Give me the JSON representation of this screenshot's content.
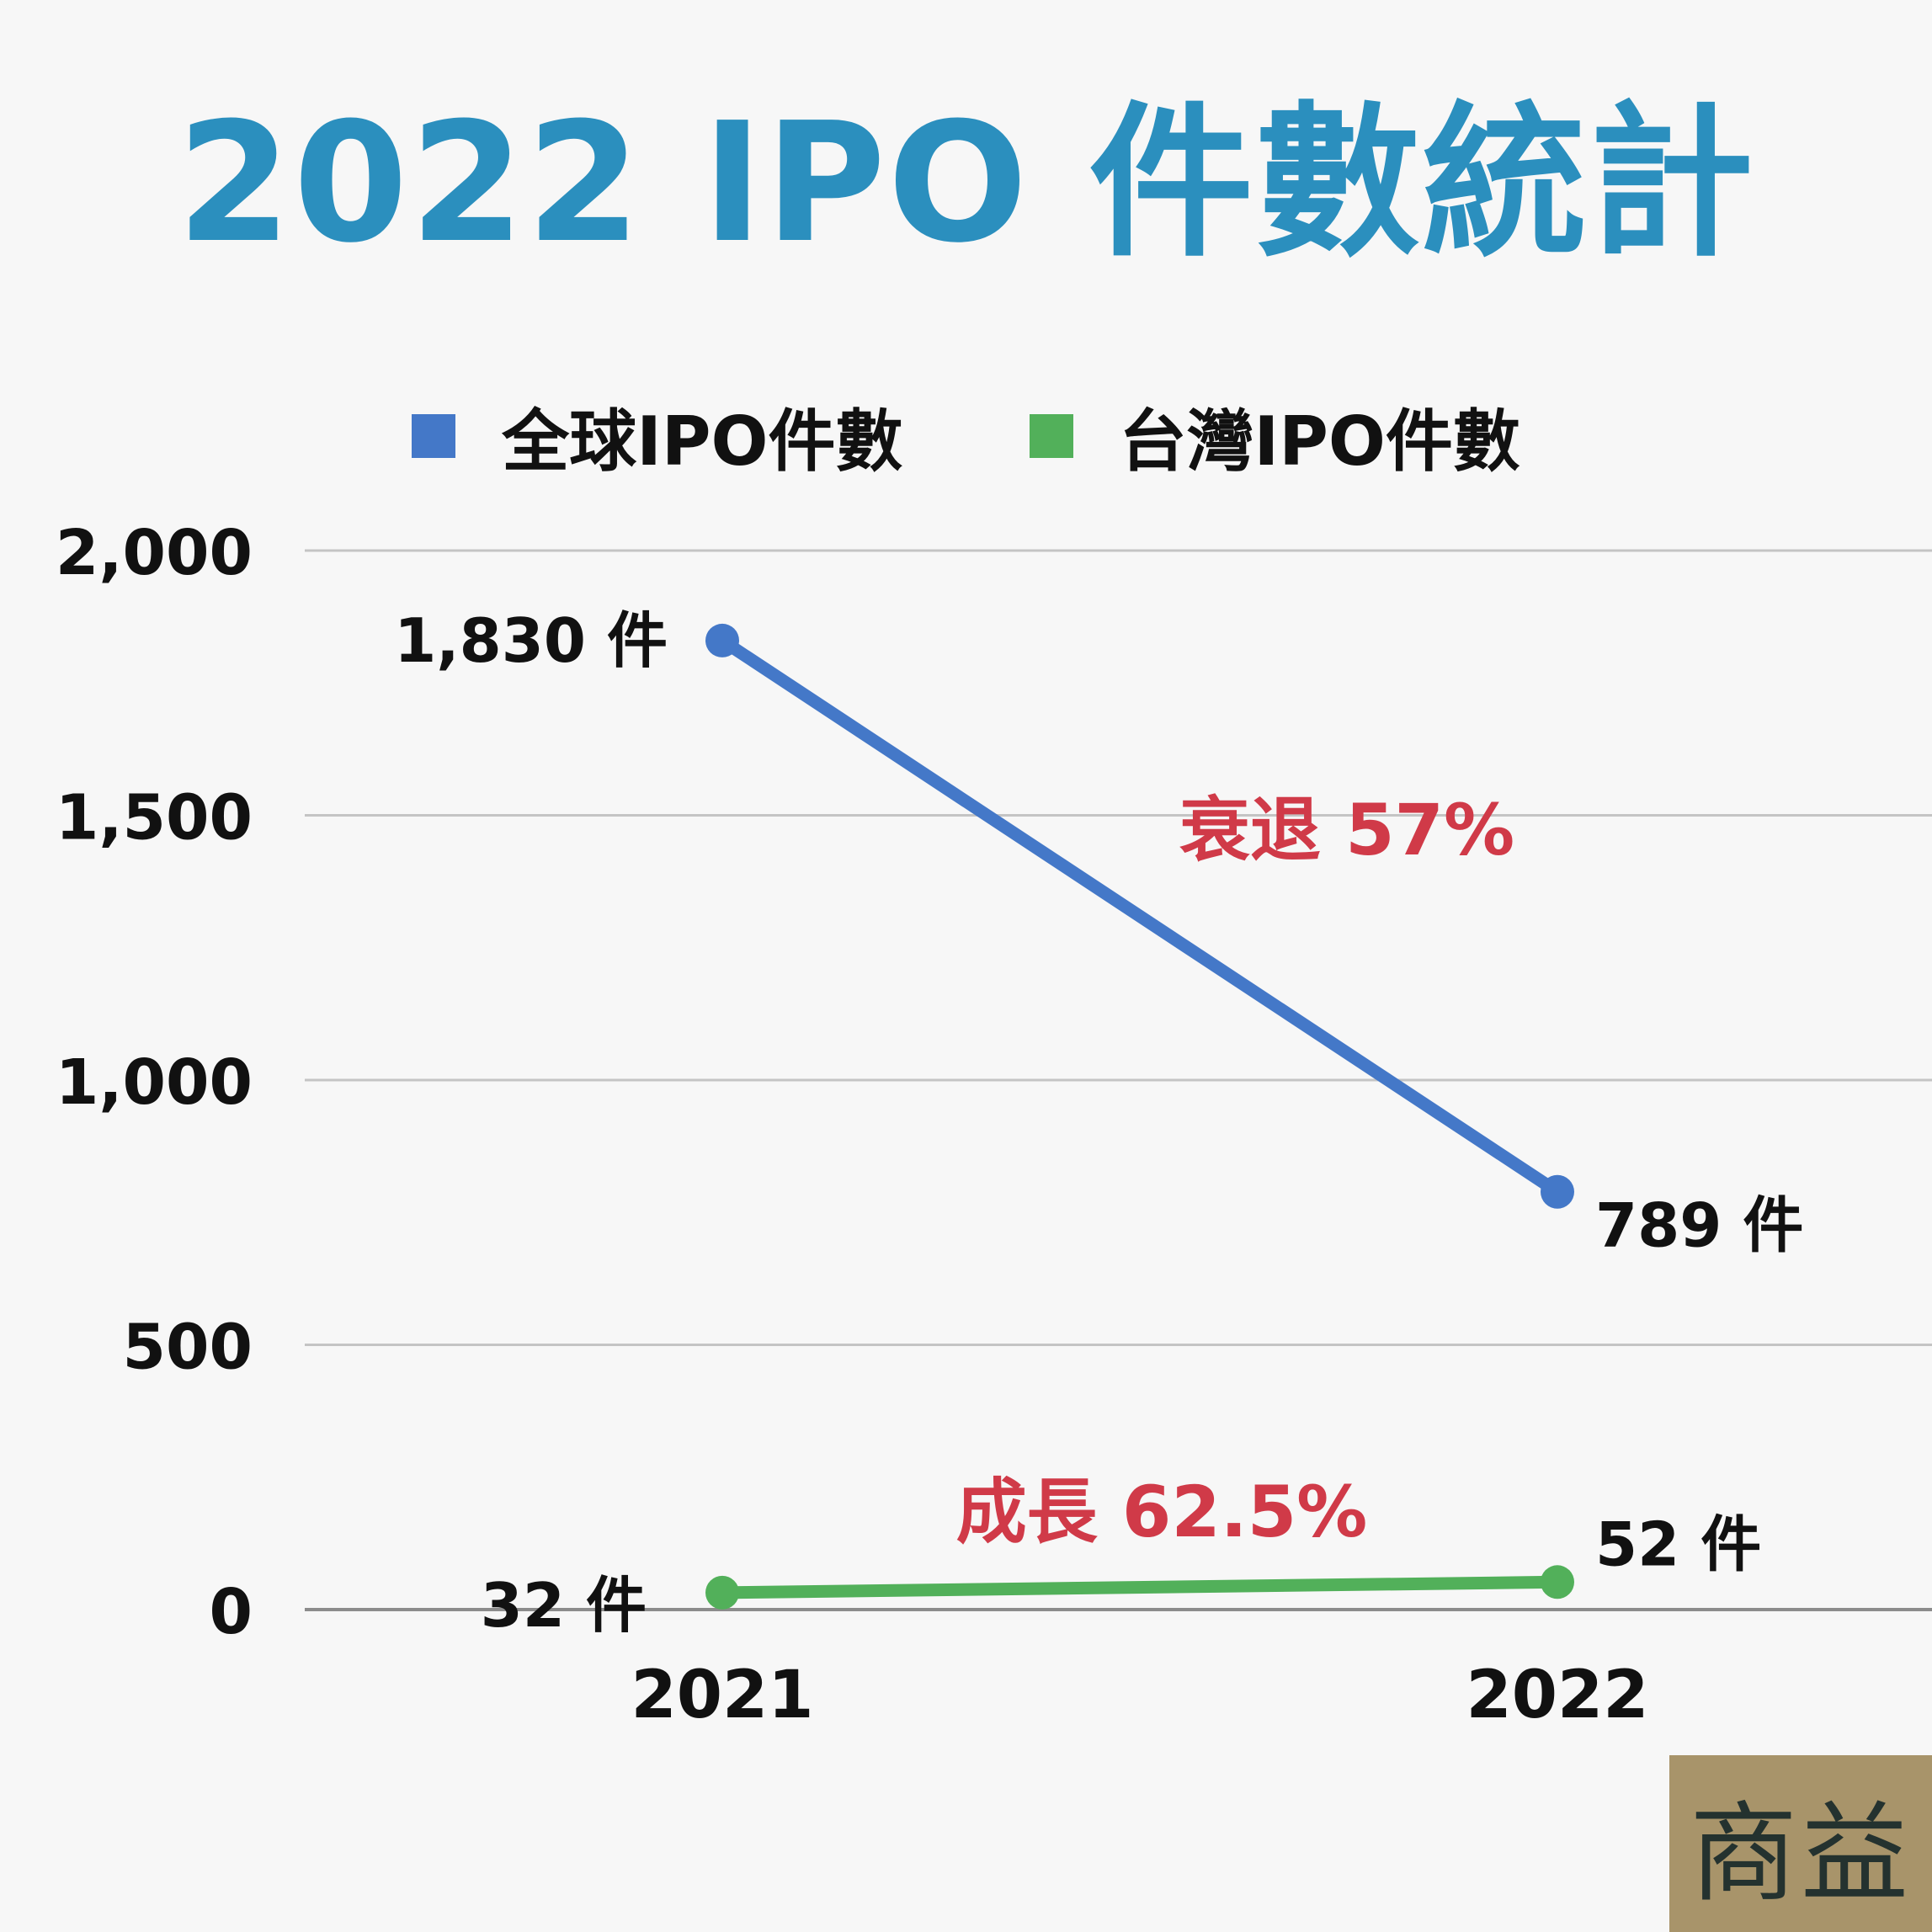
{
  "title": "2022 IPO 件數統計",
  "logo_text": "商益",
  "colors": {
    "title": "#2b8fbe",
    "global": "#4478c8",
    "taiwan": "#52b05a",
    "annotation": "#d03a48",
    "grid": "#c4c4c4",
    "axis": "#8c8c8c",
    "logo_bg": "#a8946a"
  },
  "chart_data": {
    "type": "line",
    "x": [
      "2021",
      "2022"
    ],
    "ylim": [
      0,
      2000
    ],
    "yticks": [
      0,
      500,
      1000,
      1500,
      2000
    ],
    "ytick_labels": [
      "0",
      "500",
      "1,000",
      "1,500",
      "2,000"
    ],
    "grid": true,
    "legend_placement": "top-center",
    "series": [
      {
        "name": "全球IPO件數",
        "color": "#4478c8",
        "values": [
          1830,
          789
        ],
        "labels": [
          "1,830 件",
          "789 件"
        ]
      },
      {
        "name": "台灣IPO件數",
        "color": "#52b05a",
        "values": [
          32,
          52
        ],
        "labels": [
          "32 件",
          "52 件"
        ]
      }
    ],
    "annotations": [
      {
        "text": "衰退 57%",
        "series": "全球IPO件數"
      },
      {
        "text": "成長 62.5%",
        "series": "台灣IPO件數"
      }
    ]
  }
}
